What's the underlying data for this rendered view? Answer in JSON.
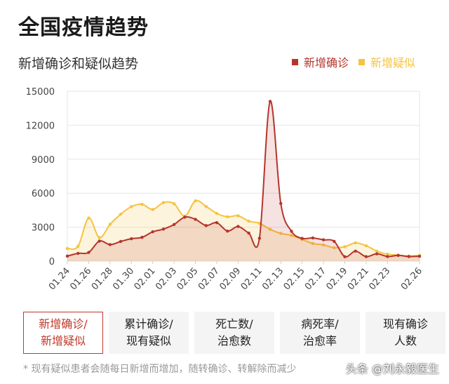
{
  "page": {
    "title": "全国疫情趋势",
    "footnote": "* 现有疑似患者会随每日新增而增加，随转确诊、转解除而减少",
    "watermark": "头条 @刘永毅医生"
  },
  "tabs": [
    {
      "label": "新增确诊/\n新增疑似",
      "active": true
    },
    {
      "label": "累计确诊/\n现有疑似",
      "active": false
    },
    {
      "label": "死亡数/\n治愈数",
      "active": false
    },
    {
      "label": "病死率/\n治愈率",
      "active": false
    },
    {
      "label": "现有确诊\n人数",
      "active": false
    }
  ],
  "colors": {
    "confirmed": "#b5352c",
    "suspected": "#f5c341"
  },
  "chart_data": {
    "type": "area",
    "title": "新增确诊和疑似趋势",
    "ylim": [
      0,
      15000
    ],
    "yticks": [
      0,
      3000,
      6000,
      9000,
      12000,
      15000
    ],
    "x": [
      "01.24",
      "01.25",
      "01.26",
      "01.27",
      "01.28",
      "01.29",
      "01.30",
      "01.31",
      "02.01",
      "02.02",
      "02.03",
      "02.04",
      "02.05",
      "02.06",
      "02.07",
      "02.08",
      "02.09",
      "02.10",
      "02.11",
      "02.12",
      "02.13",
      "02.14",
      "02.15",
      "02.16",
      "02.17",
      "02.18",
      "02.19",
      "02.20",
      "02.21",
      "02.22",
      "02.23",
      "02.24",
      "02.25",
      "02.26"
    ],
    "xtick_labels": [
      "01.24",
      "01.26",
      "01.28",
      "01.30",
      "02.01",
      "02.03",
      "02.05",
      "02.07",
      "02.09",
      "02.11",
      "02.13",
      "02.15",
      "02.17",
      "02.19",
      "02.21",
      "02.23",
      "02.26"
    ],
    "series": [
      {
        "name": "新增确诊",
        "color": "#b5352c",
        "values": [
          444,
          688,
          769,
          1771,
          1459,
          1737,
          1982,
          2102,
          2590,
          2829,
          3235,
          3887,
          3694,
          3143,
          3399,
          2656,
          3062,
          2478,
          2015,
          14108,
          5090,
          2641,
          2009,
          2048,
          1886,
          1749,
          394,
          889,
          397,
          648,
          409,
          508,
          406,
          433
        ]
      },
      {
        "name": "新增疑似",
        "color": "#f5c341",
        "values": [
          1118,
          1309,
          3806,
          2077,
          3248,
          4148,
          4812,
          5019,
          4562,
          5173,
          5072,
          3971,
          5328,
          4833,
          4214,
          3916,
          4008,
          3536,
          3342,
          2807,
          2450,
          2277,
          1918,
          1563,
          1432,
          1185,
          1277,
          1614,
          1361,
          882,
          620,
          530,
          452,
          508
        ]
      }
    ]
  }
}
